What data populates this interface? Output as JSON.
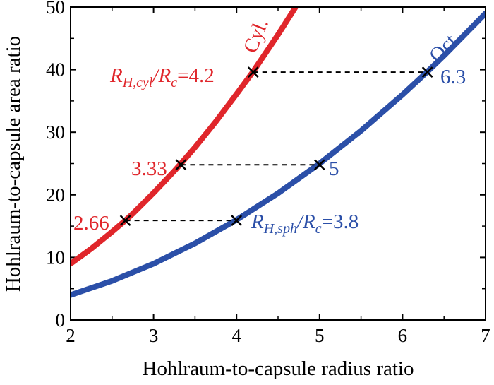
{
  "chart_data": {
    "type": "line",
    "title": "",
    "xlabel": "Hohlraum-to-capsule radius ratio",
    "ylabel": "Hohlraum-to-capsule area ratio",
    "xlim": [
      2,
      7
    ],
    "ylim": [
      0,
      50
    ],
    "xticks": [
      "2",
      "3",
      "4",
      "5",
      "6",
      "7"
    ],
    "yticks": [
      "0",
      "10",
      "20",
      "30",
      "40",
      "50"
    ],
    "grid": false,
    "series": [
      {
        "name": "Cyl.",
        "color": "#e0262b",
        "x": [
          2.0,
          2.25,
          2.5,
          2.66,
          2.75,
          3.0,
          3.25,
          3.33,
          3.5,
          3.75,
          4.0,
          4.2,
          4.5,
          4.75,
          4.86
        ],
        "y": [
          9.0,
          11.4,
          14.1,
          15.9,
          17.0,
          20.3,
          23.8,
          25.0,
          27.6,
          31.7,
          36.1,
          39.7,
          45.6,
          50.8,
          53.2
        ]
      },
      {
        "name": "Oct.",
        "color": "#2b4fa8",
        "x": [
          2.0,
          2.5,
          3.0,
          3.5,
          4.0,
          4.5,
          5.0,
          5.5,
          6.0,
          6.3,
          6.5,
          7.0
        ],
        "y": [
          4.0,
          6.25,
          9.0,
          12.25,
          16.0,
          20.25,
          25.0,
          30.25,
          36.0,
          39.7,
          42.25,
          49.0
        ]
      }
    ],
    "markers": [
      {
        "x": 2.66,
        "y": 15.9
      },
      {
        "x": 4.0,
        "y": 15.9
      },
      {
        "x": 3.33,
        "y": 24.8
      },
      {
        "x": 5.0,
        "y": 24.8
      },
      {
        "x": 4.2,
        "y": 39.6
      },
      {
        "x": 6.3,
        "y": 39.6
      }
    ],
    "dashed_lines": [
      {
        "x1": 2.66,
        "x2": 4.0,
        "y": 15.9
      },
      {
        "x1": 3.33,
        "x2": 5.0,
        "y": 24.8
      },
      {
        "x1": 4.2,
        "x2": 6.3,
        "y": 39.6
      }
    ],
    "annotations": {
      "cyl_name": "Cyl.",
      "oct_name": "Oct.",
      "v266": "2.66",
      "v333": "3.33",
      "v5": "5",
      "v63": "6.3",
      "cyl_R": "R",
      "cyl_sub": "H,cyl",
      "cyl_slash": "/R",
      "cyl_c": "c",
      "cyl_val": "=4.2",
      "sph_R": "R",
      "sph_sub": "H,sph",
      "sph_slash": "/R",
      "sph_c": "c",
      "sph_val": "=3.8"
    }
  }
}
